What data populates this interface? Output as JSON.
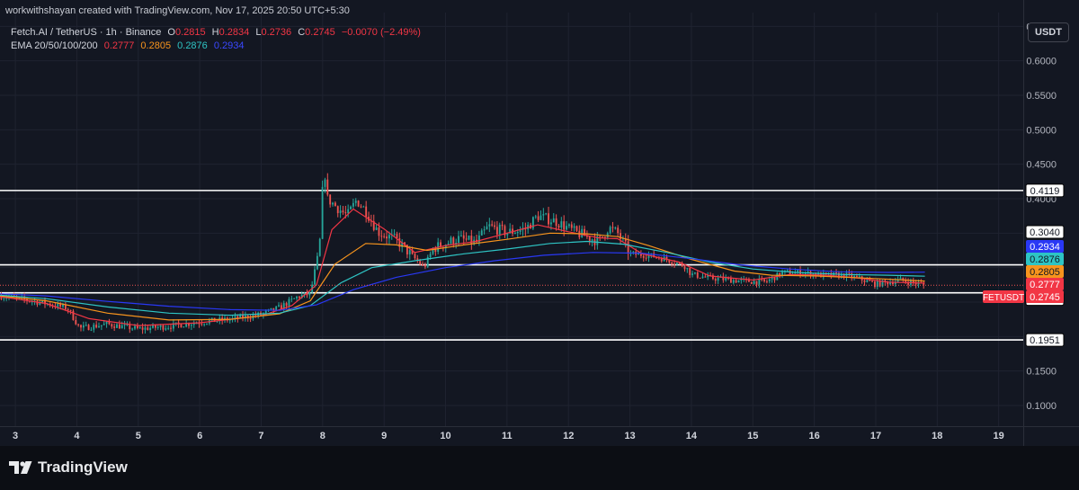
{
  "credit": "workwithshayan created with TradingView.com, Nov 17, 2025 20:50 UTC+5:30",
  "header": {
    "symbol_line": "Fetch.AI / TetherUS · 1h · Binance",
    "open_label": "O",
    "open": "0.2815",
    "high_label": "H",
    "high": "0.2834",
    "low_label": "L",
    "low": "0.2736",
    "close_label": "C",
    "close": "0.2745",
    "change": "−0.0070 (−2.49%)",
    "ema_label": "EMA 20/50/100/200",
    "ema20": "0.2777",
    "ema50": "0.2805",
    "ema100": "0.2876",
    "ema200": "0.2934"
  },
  "currency": "USDT",
  "logo_text": "TradingView",
  "colors": {
    "background": "#131722",
    "up": "#26a69a",
    "down": "#ef5350",
    "ema20": "#f23645",
    "ema50": "#f7941d",
    "ema100": "#2ec4c4",
    "ema200": "#2938f5",
    "level": "#ffffff",
    "grid": "#1f2330",
    "axis_text": "#b2b5be"
  },
  "chart_data": {
    "type": "candlestick",
    "symbol": "FETUSDT",
    "ylim": [
      0.07,
      0.67
    ],
    "y_ticks": [
      0.1,
      0.15,
      0.2,
      0.25,
      0.3,
      0.35,
      0.4,
      0.45,
      0.5,
      0.55,
      0.6,
      0.65
    ],
    "y_tick_labels": [
      "0.1000",
      "0.1500",
      "0.2000",
      "0.2500",
      "0.3000",
      "0.3500",
      "0.4000",
      "0.4500",
      "0.5000",
      "0.5500",
      "0.6000",
      "0.6500"
    ],
    "xlim": [
      2.75,
      19.4
    ],
    "x_ticks": [
      3,
      4,
      5,
      6,
      7,
      8,
      9,
      10,
      11,
      12,
      13,
      14,
      15,
      16,
      17,
      18,
      19
    ],
    "x_tick_labels": [
      "3",
      "4",
      "5",
      "6",
      "7",
      "8",
      9,
      "10",
      "11",
      "12",
      "13",
      "14",
      "15",
      "16",
      "17",
      "18",
      "19"
    ],
    "horizontal_levels": [
      {
        "value": 0.4119,
        "label": "0.4119"
      },
      {
        "value": 0.304,
        "label": "0.3040"
      },
      {
        "value": 0.2635,
        "label": "0.2635"
      },
      {
        "value": 0.1951,
        "label": "0.1951"
      }
    ],
    "price_line": {
      "value": 0.2745,
      "label": "0.2745",
      "tag": "FETUSDT"
    },
    "path": [
      [
        2.75,
        0.259
      ],
      [
        3.0,
        0.256
      ],
      [
        3.5,
        0.248
      ],
      [
        3.85,
        0.241
      ],
      [
        4.05,
        0.212
      ],
      [
        4.5,
        0.218
      ],
      [
        5.0,
        0.211
      ],
      [
        5.5,
        0.215
      ],
      [
        6.0,
        0.221
      ],
      [
        6.5,
        0.225
      ],
      [
        7.0,
        0.232
      ],
      [
        7.3,
        0.242
      ],
      [
        7.6,
        0.258
      ],
      [
        7.8,
        0.262
      ],
      [
        7.95,
        0.33
      ],
      [
        8.02,
        0.45
      ],
      [
        8.08,
        0.4
      ],
      [
        8.2,
        0.39
      ],
      [
        8.4,
        0.375
      ],
      [
        8.55,
        0.398
      ],
      [
        8.7,
        0.383
      ],
      [
        8.9,
        0.352
      ],
      [
        9.2,
        0.34
      ],
      [
        9.4,
        0.322
      ],
      [
        9.65,
        0.3
      ],
      [
        9.8,
        0.328
      ],
      [
        10.2,
        0.342
      ],
      [
        10.5,
        0.336
      ],
      [
        10.7,
        0.36
      ],
      [
        11.0,
        0.351
      ],
      [
        11.3,
        0.356
      ],
      [
        11.5,
        0.375
      ],
      [
        11.8,
        0.367
      ],
      [
        12.1,
        0.352
      ],
      [
        12.5,
        0.338
      ],
      [
        12.65,
        0.358
      ],
      [
        12.8,
        0.35
      ],
      [
        13.0,
        0.32
      ],
      [
        13.3,
        0.318
      ],
      [
        13.6,
        0.312
      ],
      [
        13.9,
        0.302
      ],
      [
        14.0,
        0.29
      ],
      [
        14.3,
        0.285
      ],
      [
        14.8,
        0.281
      ],
      [
        15.2,
        0.279
      ],
      [
        15.5,
        0.293
      ],
      [
        15.8,
        0.293
      ],
      [
        16.1,
        0.289
      ],
      [
        16.5,
        0.289
      ],
      [
        16.7,
        0.285
      ],
      [
        17.0,
        0.276
      ],
      [
        17.4,
        0.282
      ],
      [
        17.8,
        0.2745
      ]
    ],
    "emas": [
      {
        "name": "EMA 20",
        "color": "#f23645",
        "value": 0.2777,
        "label": "0.2777",
        "points": [
          [
            2.75,
            0.258
          ],
          [
            3.5,
            0.248
          ],
          [
            4.2,
            0.226
          ],
          [
            5.0,
            0.216
          ],
          [
            6.0,
            0.22
          ],
          [
            7.0,
            0.23
          ],
          [
            7.5,
            0.245
          ],
          [
            7.9,
            0.275
          ],
          [
            8.15,
            0.355
          ],
          [
            8.5,
            0.385
          ],
          [
            9.0,
            0.356
          ],
          [
            9.5,
            0.322
          ],
          [
            10.0,
            0.332
          ],
          [
            10.5,
            0.338
          ],
          [
            11.0,
            0.35
          ],
          [
            11.5,
            0.362
          ],
          [
            12.0,
            0.352
          ],
          [
            12.5,
            0.343
          ],
          [
            12.8,
            0.342
          ],
          [
            13.2,
            0.32
          ],
          [
            13.8,
            0.308
          ],
          [
            14.3,
            0.288
          ],
          [
            15.0,
            0.282
          ],
          [
            15.6,
            0.29
          ],
          [
            16.2,
            0.289
          ],
          [
            16.8,
            0.284
          ],
          [
            17.2,
            0.279
          ],
          [
            17.8,
            0.2777
          ]
        ]
      },
      {
        "name": "EMA 50",
        "color": "#f7941d",
        "value": 0.2805,
        "label": "0.2805",
        "points": [
          [
            2.75,
            0.259
          ],
          [
            3.5,
            0.252
          ],
          [
            4.5,
            0.234
          ],
          [
            5.5,
            0.224
          ],
          [
            6.5,
            0.225
          ],
          [
            7.3,
            0.233
          ],
          [
            7.8,
            0.252
          ],
          [
            8.2,
            0.305
          ],
          [
            8.7,
            0.335
          ],
          [
            9.2,
            0.333
          ],
          [
            9.7,
            0.325
          ],
          [
            10.3,
            0.333
          ],
          [
            11.0,
            0.341
          ],
          [
            11.7,
            0.35
          ],
          [
            12.3,
            0.349
          ],
          [
            12.8,
            0.345
          ],
          [
            13.3,
            0.332
          ],
          [
            14.0,
            0.312
          ],
          [
            14.7,
            0.295
          ],
          [
            15.3,
            0.289
          ],
          [
            16.0,
            0.288
          ],
          [
            16.8,
            0.285
          ],
          [
            17.8,
            0.2805
          ]
        ]
      },
      {
        "name": "EMA 100",
        "color": "#2ec4c4",
        "value": 0.2876,
        "label": "0.2876",
        "points": [
          [
            2.75,
            0.26
          ],
          [
            3.5,
            0.255
          ],
          [
            4.5,
            0.243
          ],
          [
            5.5,
            0.234
          ],
          [
            6.5,
            0.231
          ],
          [
            7.3,
            0.234
          ],
          [
            7.8,
            0.245
          ],
          [
            8.3,
            0.278
          ],
          [
            8.8,
            0.3
          ],
          [
            9.5,
            0.31
          ],
          [
            10.3,
            0.32
          ],
          [
            11.0,
            0.327
          ],
          [
            11.7,
            0.335
          ],
          [
            12.3,
            0.338
          ],
          [
            12.9,
            0.334
          ],
          [
            13.6,
            0.322
          ],
          [
            14.3,
            0.308
          ],
          [
            15.0,
            0.298
          ],
          [
            15.7,
            0.293
          ],
          [
            16.5,
            0.29
          ],
          [
            17.2,
            0.289
          ],
          [
            17.8,
            0.2876
          ]
        ]
      },
      {
        "name": "EMA 200",
        "color": "#2938f5",
        "value": 0.2934,
        "label": "0.2934",
        "points": [
          [
            2.75,
            0.262
          ],
          [
            3.5,
            0.259
          ],
          [
            4.5,
            0.251
          ],
          [
            5.5,
            0.244
          ],
          [
            6.5,
            0.239
          ],
          [
            7.3,
            0.238
          ],
          [
            7.9,
            0.246
          ],
          [
            8.5,
            0.268
          ],
          [
            9.2,
            0.286
          ],
          [
            10.0,
            0.3
          ],
          [
            10.8,
            0.31
          ],
          [
            11.6,
            0.318
          ],
          [
            12.4,
            0.322
          ],
          [
            13.2,
            0.321
          ],
          [
            14.0,
            0.313
          ],
          [
            14.8,
            0.304
          ],
          [
            15.6,
            0.298
          ],
          [
            16.4,
            0.294
          ],
          [
            17.2,
            0.293
          ],
          [
            17.8,
            0.2934
          ]
        ]
      }
    ],
    "n_candles": 360,
    "wick_scale": 0.006,
    "volatility": 0.0045
  }
}
